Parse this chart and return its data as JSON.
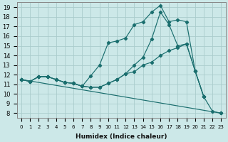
{
  "xlabel": "Humidex (Indice chaleur)",
  "background_color": "#cce8e8",
  "grid_color": "#aacccc",
  "line_color": "#1a6e6e",
  "xlim": [
    -0.5,
    23.5
  ],
  "ylim": [
    7.5,
    19.5
  ],
  "xticks": [
    0,
    1,
    2,
    3,
    4,
    5,
    6,
    7,
    8,
    9,
    10,
    11,
    12,
    13,
    14,
    15,
    16,
    17,
    18,
    19,
    20,
    21,
    22,
    23
  ],
  "yticks": [
    8,
    9,
    10,
    11,
    12,
    13,
    14,
    15,
    16,
    17,
    18,
    19
  ],
  "line1_x": [
    0,
    1,
    2,
    3,
    4,
    5,
    6,
    7,
    8,
    9,
    10,
    11,
    12,
    13,
    14,
    15,
    16,
    17,
    18,
    19,
    20,
    21,
    22,
    23
  ],
  "line1_y": [
    11.5,
    11.3,
    11.8,
    11.8,
    11.5,
    11.2,
    11.1,
    10.8,
    10.7,
    10.7,
    11.1,
    11.5,
    12.1,
    12.3,
    13.0,
    13.3,
    14.0,
    14.5,
    14.8,
    15.2,
    12.4,
    9.7,
    8.2,
    8.0
  ],
  "line2_x": [
    0,
    1,
    2,
    3,
    4,
    5,
    6,
    7,
    8,
    9,
    10,
    11,
    12,
    13,
    14,
    15,
    16,
    17,
    18,
    19,
    20,
    21
  ],
  "line2_y": [
    11.5,
    11.3,
    11.8,
    11.8,
    11.5,
    11.2,
    11.1,
    10.8,
    11.9,
    13.0,
    15.3,
    15.5,
    15.8,
    17.2,
    17.5,
    18.5,
    19.2,
    17.5,
    17.7,
    17.5,
    12.4,
    9.7
  ],
  "line3_x": [
    0,
    1,
    2,
    3,
    4,
    5,
    6,
    7,
    8,
    9,
    10,
    11,
    12,
    13,
    14,
    15,
    16,
    17,
    18,
    19,
    20,
    21
  ],
  "line3_y": [
    11.5,
    11.3,
    11.8,
    11.8,
    11.5,
    11.2,
    11.1,
    10.8,
    10.7,
    10.7,
    11.1,
    11.5,
    12.1,
    13.0,
    13.8,
    15.7,
    18.5,
    17.2,
    15.0,
    15.2,
    12.4,
    9.7
  ],
  "line4_x": [
    0,
    23
  ],
  "line4_y": [
    11.5,
    8.0
  ]
}
